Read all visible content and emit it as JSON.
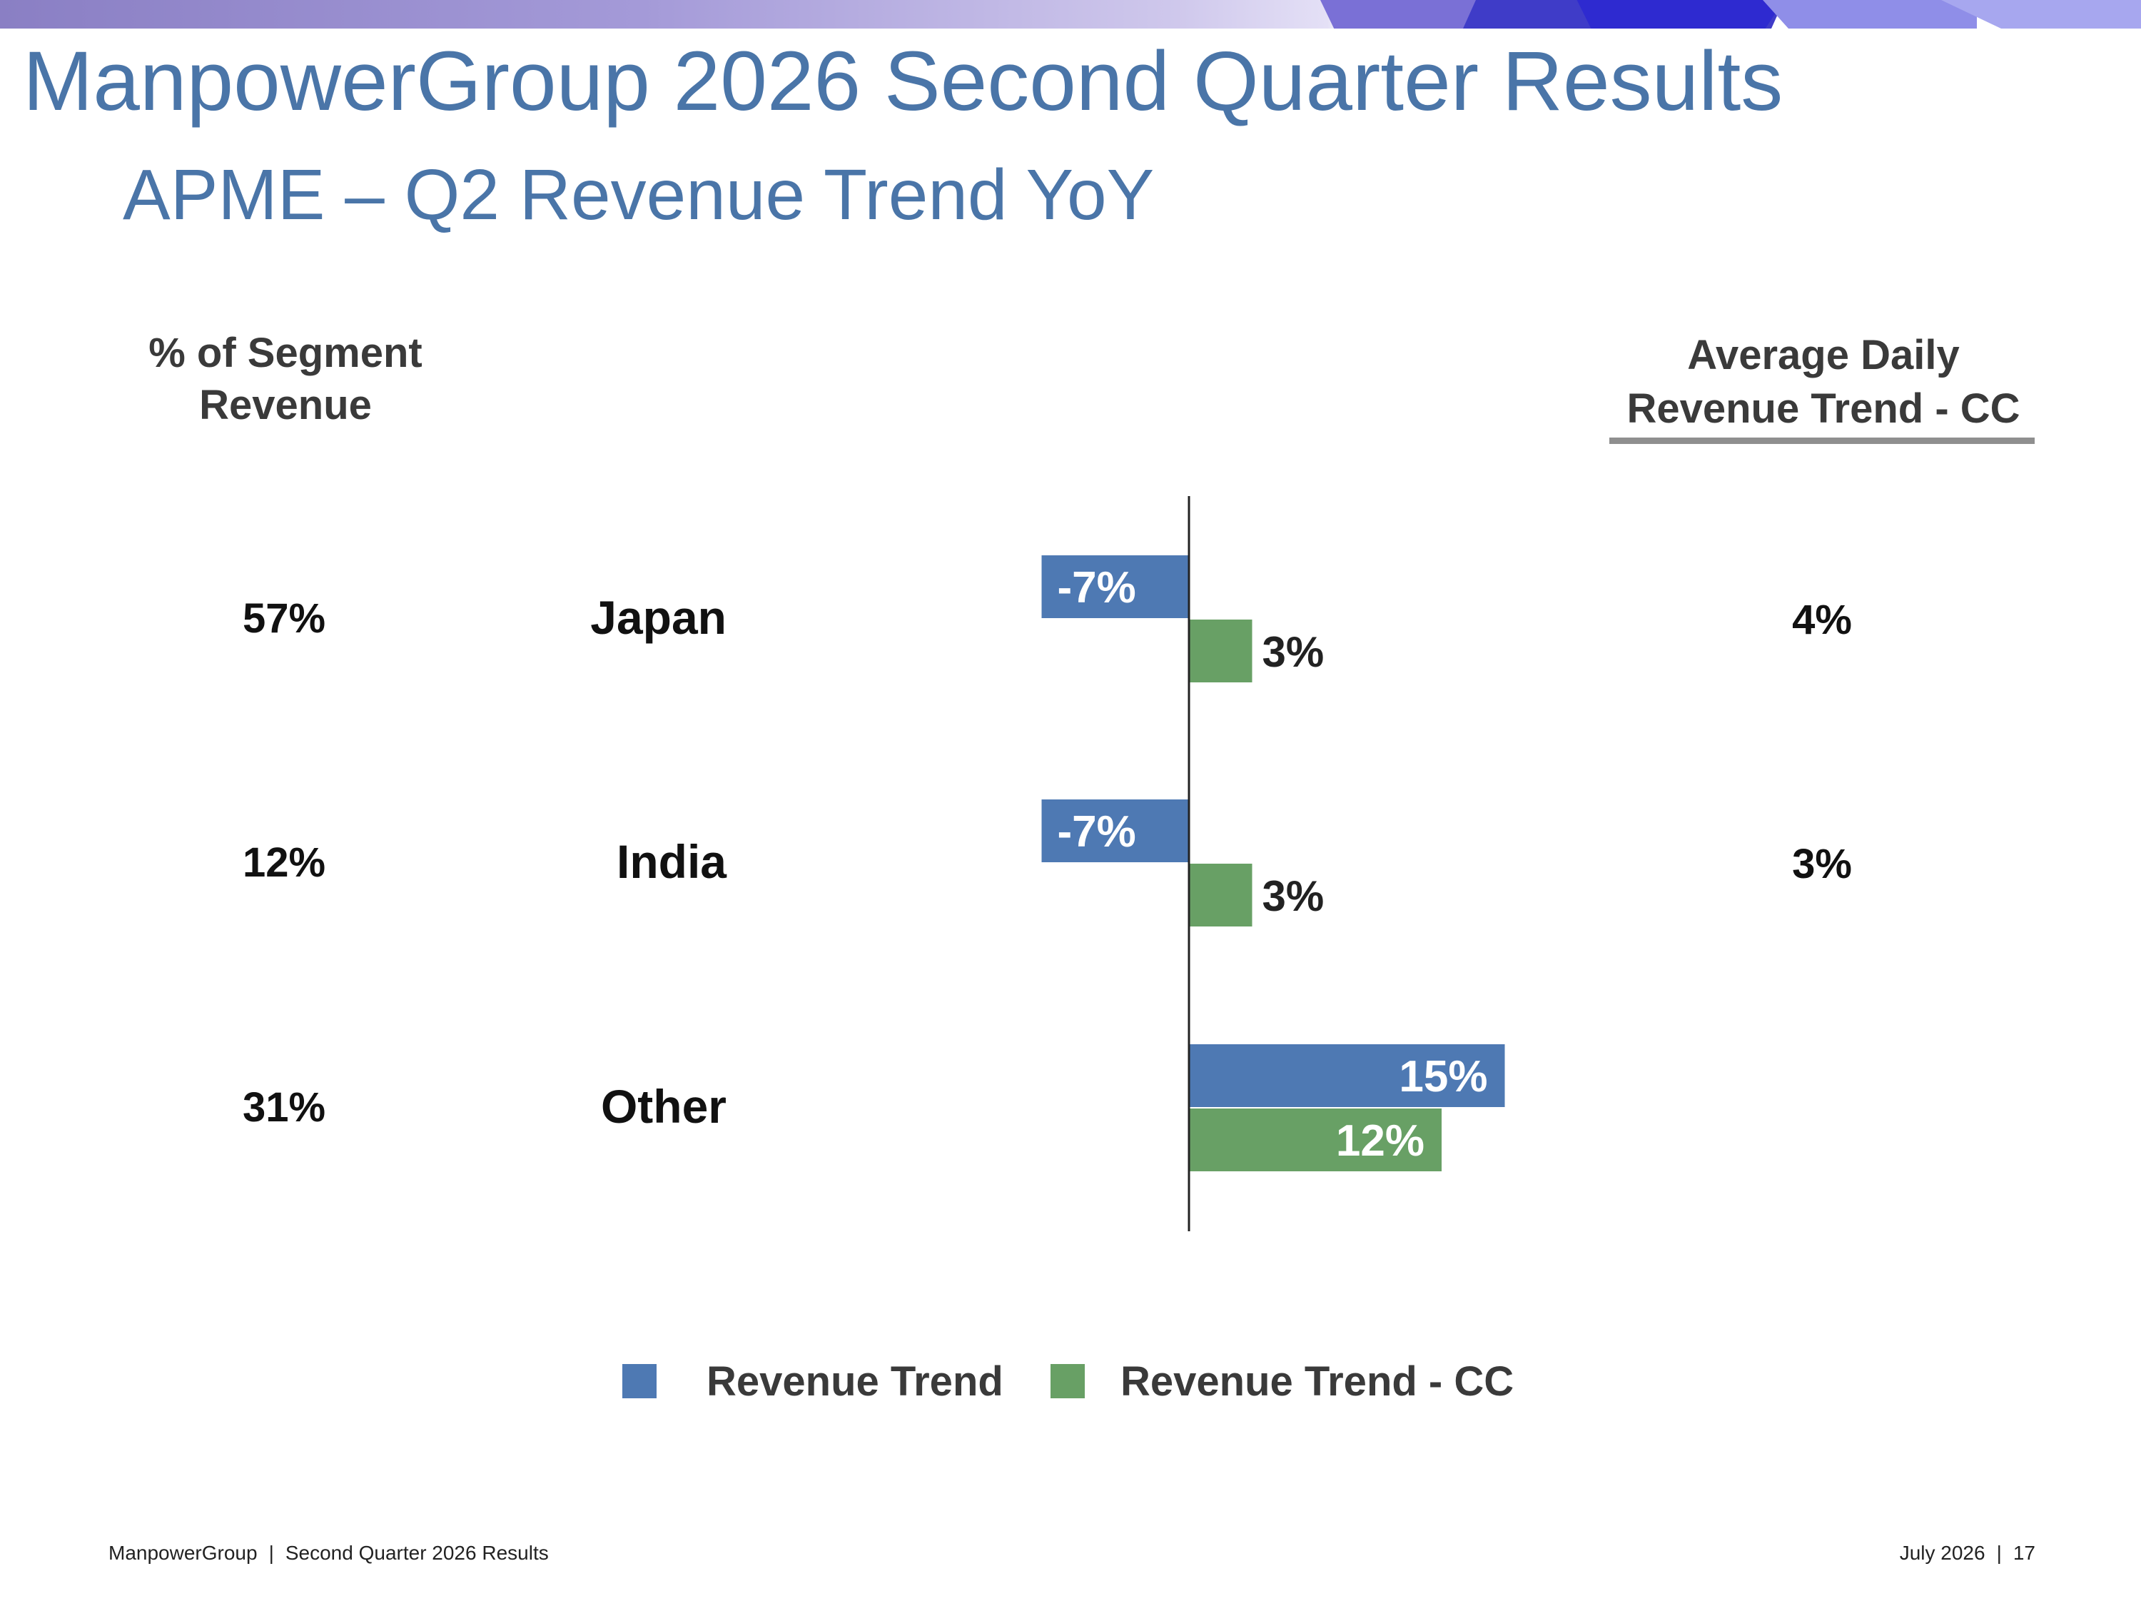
{
  "header": {
    "title": "ManpowerGroup 2026 Second Quarter Results",
    "subtitle": "APME – Q2 Revenue Trend YoY"
  },
  "footer": {
    "company": "ManpowerGroup",
    "report": "Second Quarter 2026 Results",
    "date": "July 2026",
    "page": "17"
  },
  "colors": {
    "title": "#4a75a8",
    "series_revenue_trend": "#4e79b3",
    "series_revenue_trend_cc": "#68a065"
  },
  "chart_data": {
    "type": "bar",
    "orientation": "horizontal",
    "categories": [
      "Japan",
      "India",
      "Other"
    ],
    "series": [
      {
        "name": "Revenue Trend",
        "values": [
          -7,
          -7,
          15
        ],
        "labels": [
          "-7%",
          "-7%",
          "15%"
        ]
      },
      {
        "name": "Revenue Trend - CC",
        "values": [
          3,
          3,
          12
        ],
        "labels": [
          "3%",
          "3%",
          "12%"
        ]
      }
    ],
    "left_column": {
      "header_line1": "% of Segment",
      "header_line2": "Revenue",
      "values": [
        "57%",
        "12%",
        "31%"
      ]
    },
    "right_column": {
      "header_line1": "Average Daily",
      "header_line2": "Revenue Trend - CC",
      "values": [
        "4%",
        "3%",
        ""
      ]
    },
    "xlim": [
      -10,
      20
    ],
    "legend_position": "bottom",
    "grid": false
  }
}
